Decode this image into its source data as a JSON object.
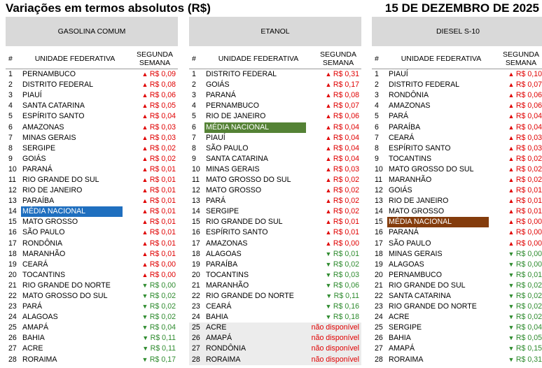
{
  "title": "Variações em termos absolutos (R$)",
  "date": "15 DE DEZEMBRO DE 2025",
  "columns": {
    "number": "#",
    "state": "UNIDADE FEDERATIVA",
    "week_line1": "SEGUNDA",
    "week_line2": "SEMANA"
  },
  "colors": {
    "up": "#e00000",
    "down": "#2e8b2e",
    "highlight_gasolina": "#1f6fbf",
    "highlight_etanol": "#548235",
    "highlight_diesel": "#843c0c"
  },
  "panels": [
    {
      "name": "GASOLINA COMUM",
      "highlight_color": "#1f6fbf",
      "rows": [
        {
          "n": "1",
          "state": "PERNAMBUCO",
          "dir": "up",
          "value": "R$ 0,09"
        },
        {
          "n": "2",
          "state": "DISTRITO FEDERAL",
          "dir": "up",
          "value": "R$ 0,08"
        },
        {
          "n": "3",
          "state": "PIAUÍ",
          "dir": "up",
          "value": "R$ 0,06"
        },
        {
          "n": "4",
          "state": "SANTA CATARINA",
          "dir": "up",
          "value": "R$ 0,05"
        },
        {
          "n": "5",
          "state": "ESPÍRITO SANTO",
          "dir": "up",
          "value": "R$ 0,04"
        },
        {
          "n": "6",
          "state": "AMAZONAS",
          "dir": "up",
          "value": "R$ 0,03"
        },
        {
          "n": "7",
          "state": "MINAS GERAIS",
          "dir": "up",
          "value": "R$ 0,03"
        },
        {
          "n": "8",
          "state": "SERGIPE",
          "dir": "up",
          "value": "R$ 0,02"
        },
        {
          "n": "9",
          "state": "GOIÁS",
          "dir": "up",
          "value": "R$ 0,02"
        },
        {
          "n": "10",
          "state": "PARANÁ",
          "dir": "up",
          "value": "R$ 0,01"
        },
        {
          "n": "11",
          "state": "RIO GRANDE DO SUL",
          "dir": "up",
          "value": "R$ 0,01"
        },
        {
          "n": "12",
          "state": "RIO DE JANEIRO",
          "dir": "up",
          "value": "R$ 0,01"
        },
        {
          "n": "13",
          "state": "PARAÍBA",
          "dir": "up",
          "value": "R$ 0,01"
        },
        {
          "n": "14",
          "state": "MÉDIA NACIONAL",
          "dir": "up",
          "value": "R$ 0,01",
          "highlight": true
        },
        {
          "n": "15",
          "state": "MATO GROSSO",
          "dir": "up",
          "value": "R$ 0,01"
        },
        {
          "n": "16",
          "state": "SÃO PAULO",
          "dir": "up",
          "value": "R$ 0,01"
        },
        {
          "n": "17",
          "state": "RONDÔNIA",
          "dir": "up",
          "value": "R$ 0,01"
        },
        {
          "n": "18",
          "state": "MARANHÃO",
          "dir": "up",
          "value": "R$ 0,01"
        },
        {
          "n": "19",
          "state": "CEARÁ",
          "dir": "up",
          "value": "R$ 0,00"
        },
        {
          "n": "20",
          "state": "TOCANTINS",
          "dir": "up",
          "value": "R$ 0,00"
        },
        {
          "n": "21",
          "state": "RIO GRANDE DO NORTE",
          "dir": "down",
          "value": "R$ 0,00"
        },
        {
          "n": "22",
          "state": "MATO GROSSO DO SUL",
          "dir": "down",
          "value": "R$ 0,02"
        },
        {
          "n": "23",
          "state": "PARÁ",
          "dir": "down",
          "value": "R$ 0,02"
        },
        {
          "n": "24",
          "state": "ALAGOAS",
          "dir": "down",
          "value": "R$ 0,02"
        },
        {
          "n": "25",
          "state": "AMAPÁ",
          "dir": "down",
          "value": "R$ 0,04"
        },
        {
          "n": "26",
          "state": "BAHIA",
          "dir": "down",
          "value": "R$ 0,11"
        },
        {
          "n": "27",
          "state": "ACRE",
          "dir": "down",
          "value": "R$ 0,11"
        },
        {
          "n": "28",
          "state": "RORAIMA",
          "dir": "down",
          "value": "R$ 0,17"
        }
      ]
    },
    {
      "name": "ETANOL",
      "highlight_color": "#548235",
      "rows": [
        {
          "n": "1",
          "state": "DISTRITO FEDERAL",
          "dir": "up",
          "value": "R$ 0,31"
        },
        {
          "n": "2",
          "state": "GOIÁS",
          "dir": "up",
          "value": "R$ 0,17"
        },
        {
          "n": "3",
          "state": "PARANÁ",
          "dir": "up",
          "value": "R$ 0,08"
        },
        {
          "n": "4",
          "state": "PERNAMBUCO",
          "dir": "up",
          "value": "R$ 0,07"
        },
        {
          "n": "5",
          "state": "RIO DE JANEIRO",
          "dir": "up",
          "value": "R$ 0,06"
        },
        {
          "n": "6",
          "state": "MÉDIA NACIONAL",
          "dir": "up",
          "value": "R$ 0,04",
          "highlight": true
        },
        {
          "n": "7",
          "state": "PIAUÍ",
          "dir": "up",
          "value": "R$ 0,04"
        },
        {
          "n": "8",
          "state": "SÃO PAULO",
          "dir": "up",
          "value": "R$ 0,04"
        },
        {
          "n": "9",
          "state": "SANTA CATARINA",
          "dir": "up",
          "value": "R$ 0,04"
        },
        {
          "n": "10",
          "state": "MINAS GERAIS",
          "dir": "up",
          "value": "R$ 0,03"
        },
        {
          "n": "11",
          "state": "MATO GROSSO DO SUL",
          "dir": "up",
          "value": "R$ 0,02"
        },
        {
          "n": "12",
          "state": "MATO GROSSO",
          "dir": "up",
          "value": "R$ 0,02"
        },
        {
          "n": "13",
          "state": "PARÁ",
          "dir": "up",
          "value": "R$ 0,02"
        },
        {
          "n": "14",
          "state": "SERGIPE",
          "dir": "up",
          "value": "R$ 0,02"
        },
        {
          "n": "15",
          "state": "RIO GRANDE DO SUL",
          "dir": "up",
          "value": "R$ 0,01"
        },
        {
          "n": "16",
          "state": "ESPÍRITO SANTO",
          "dir": "up",
          "value": "R$ 0,01"
        },
        {
          "n": "17",
          "state": "AMAZONAS",
          "dir": "up",
          "value": "R$ 0,00"
        },
        {
          "n": "18",
          "state": "ALAGOAS",
          "dir": "down",
          "value": "R$ 0,01"
        },
        {
          "n": "19",
          "state": "PARAÍBA",
          "dir": "down",
          "value": "R$ 0,02"
        },
        {
          "n": "20",
          "state": "TOCANTINS",
          "dir": "down",
          "value": "R$ 0,03"
        },
        {
          "n": "21",
          "state": "MARANHÃO",
          "dir": "down",
          "value": "R$ 0,06"
        },
        {
          "n": "22",
          "state": "RIO GRANDE DO NORTE",
          "dir": "down",
          "value": "R$ 0,11"
        },
        {
          "n": "23",
          "state": "CEARÁ",
          "dir": "down",
          "value": "R$ 0,16"
        },
        {
          "n": "24",
          "state": "BAHIA",
          "dir": "down",
          "value": "R$ 0,18"
        },
        {
          "n": "25",
          "state": "ACRE",
          "dir": "na",
          "value": "não disponível",
          "grey": true
        },
        {
          "n": "26",
          "state": "AMAPÁ",
          "dir": "na",
          "value": "não disponível",
          "grey": true
        },
        {
          "n": "27",
          "state": "RONDÔNIA",
          "dir": "na",
          "value": "não disponível",
          "grey": true
        },
        {
          "n": "28",
          "state": "RORAIMA",
          "dir": "na",
          "value": "não disponível",
          "grey": true
        }
      ]
    },
    {
      "name": "DIESEL S-10",
      "highlight_color": "#843c0c",
      "rows": [
        {
          "n": "1",
          "state": "PIAUÍ",
          "dir": "up",
          "value": "R$ 0,10"
        },
        {
          "n": "2",
          "state": "DISTRITO FEDERAL",
          "dir": "up",
          "value": "R$ 0,07"
        },
        {
          "n": "3",
          "state": "RONDÔNIA",
          "dir": "up",
          "value": "R$ 0,06"
        },
        {
          "n": "4",
          "state": "AMAZONAS",
          "dir": "up",
          "value": "R$ 0,06"
        },
        {
          "n": "5",
          "state": "PARÁ",
          "dir": "up",
          "value": "R$ 0,04"
        },
        {
          "n": "6",
          "state": "PARAÍBA",
          "dir": "up",
          "value": "R$ 0,04"
        },
        {
          "n": "7",
          "state": "CEARÁ",
          "dir": "up",
          "value": "R$ 0,03"
        },
        {
          "n": "8",
          "state": "ESPÍRITO SANTO",
          "dir": "up",
          "value": "R$ 0,03"
        },
        {
          "n": "9",
          "state": "TOCANTINS",
          "dir": "up",
          "value": "R$ 0,02"
        },
        {
          "n": "10",
          "state": "MATO GROSSO DO SUL",
          "dir": "up",
          "value": "R$ 0,02"
        },
        {
          "n": "11",
          "state": "MARANHÃO",
          "dir": "up",
          "value": "R$ 0,02"
        },
        {
          "n": "12",
          "state": "GOIÁS",
          "dir": "up",
          "value": "R$ 0,01"
        },
        {
          "n": "13",
          "state": "RIO DE JANEIRO",
          "dir": "up",
          "value": "R$ 0,01"
        },
        {
          "n": "14",
          "state": "MATO GROSSO",
          "dir": "up",
          "value": "R$ 0,01"
        },
        {
          "n": "15",
          "state": "MÉDIA NACIONAL",
          "dir": "up",
          "value": "R$ 0,00",
          "highlight": true
        },
        {
          "n": "16",
          "state": "PARANÁ",
          "dir": "up",
          "value": "R$ 0,00"
        },
        {
          "n": "17",
          "state": "SÃO PAULO",
          "dir": "up",
          "value": "R$ 0,00"
        },
        {
          "n": "18",
          "state": "MINAS GERAIS",
          "dir": "down",
          "value": "R$ 0,00"
        },
        {
          "n": "19",
          "state": "ALAGOAS",
          "dir": "down",
          "value": "R$ 0,00"
        },
        {
          "n": "20",
          "state": "PERNAMBUCO",
          "dir": "down",
          "value": "R$ 0,01"
        },
        {
          "n": "21",
          "state": "RIO GRANDE DO SUL",
          "dir": "down",
          "value": "R$ 0,02"
        },
        {
          "n": "22",
          "state": "SANTA CATARINA",
          "dir": "down",
          "value": "R$ 0,02"
        },
        {
          "n": "23",
          "state": "RIO GRANDE DO NORTE",
          "dir": "down",
          "value": "R$ 0,02"
        },
        {
          "n": "24",
          "state": "ACRE",
          "dir": "down",
          "value": "R$ 0,02"
        },
        {
          "n": "25",
          "state": "SERGIPE",
          "dir": "down",
          "value": "R$ 0,04"
        },
        {
          "n": "26",
          "state": "BAHIA",
          "dir": "down",
          "value": "R$ 0,05"
        },
        {
          "n": "27",
          "state": "AMAPÁ",
          "dir": "down",
          "value": "R$ 0,15"
        },
        {
          "n": "28",
          "state": "RORAIMA",
          "dir": "down",
          "value": "R$ 0,31"
        }
      ]
    }
  ]
}
